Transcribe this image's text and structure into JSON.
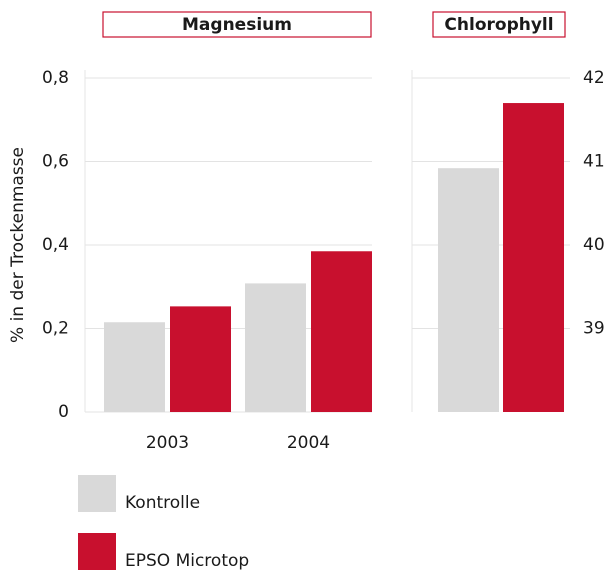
{
  "chart_data": [
    {
      "type": "bar",
      "title": "Magnesium",
      "y_label": "% in der Trockenmasse",
      "categories": [
        "2003",
        "2004"
      ],
      "series": [
        {
          "name": "Kontrolle",
          "color": "#d9d9d9",
          "values": [
            0.215,
            0.308
          ]
        },
        {
          "name": "EPSO Microtop",
          "color": "#c8102e",
          "values": [
            0.253,
            0.385
          ]
        }
      ],
      "ylim": [
        0,
        0.8
      ],
      "yticks": [
        0,
        {
          "value": 0.2,
          "label": "0,2"
        },
        {
          "value": 0.4,
          "label": "0,4"
        },
        {
          "value": 0.6,
          "label": "0,6"
        },
        {
          "value": 0.8,
          "label": "0,8"
        }
      ],
      "grid": true,
      "legend": "bottom-left"
    },
    {
      "type": "bar",
      "title": "Chlorophyll",
      "values": [
        40.92,
        41.7
      ],
      "colors": [
        "#d9d9d9",
        "#c8102e"
      ],
      "y2lim": [
        38,
        42
      ],
      "y2ticks": [
        39,
        40,
        41,
        42
      ],
      "grid": true
    }
  ]
}
